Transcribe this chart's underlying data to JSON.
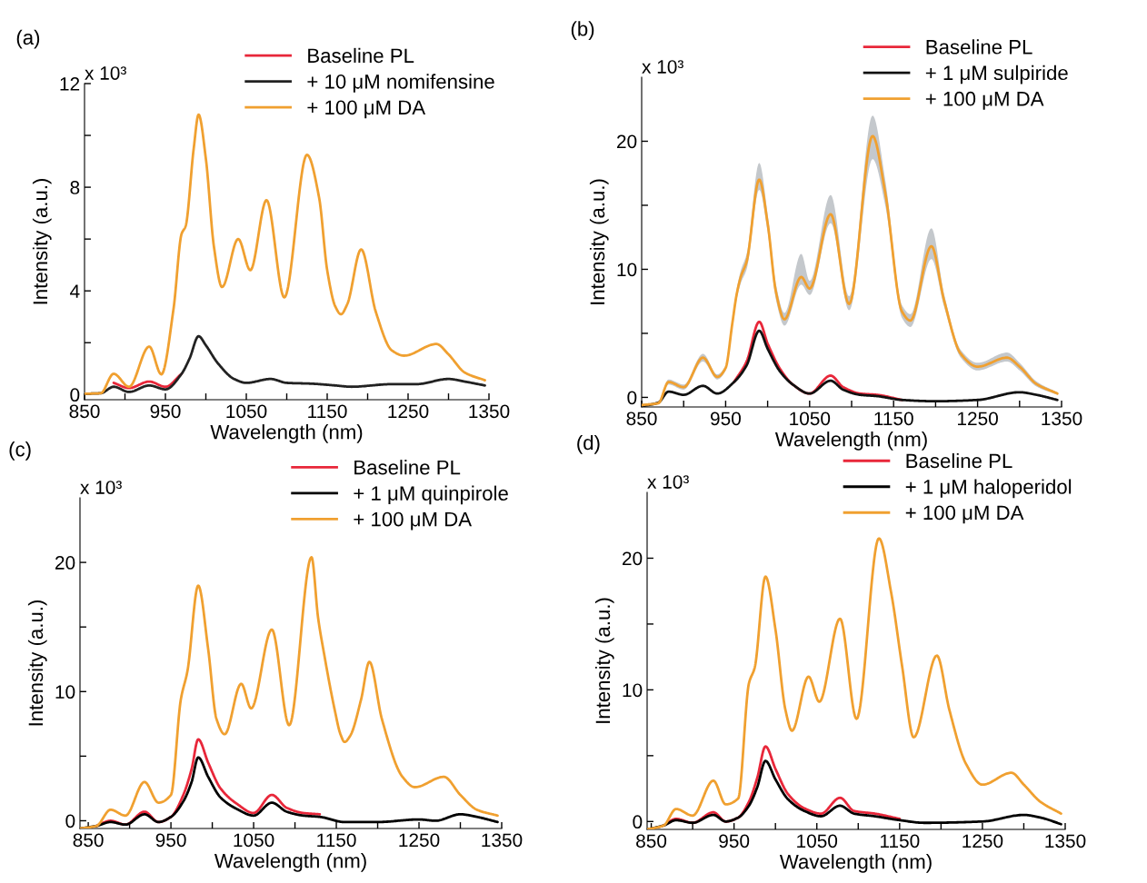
{
  "chart_data": [
    {
      "type": "line",
      "title": "(a)",
      "annotations": [
        "x 10³"
      ],
      "xlabel": "Wavelength (nm)",
      "ylabel": "Intensity (a.u.)",
      "xlim": [
        850,
        1350
      ],
      "xticks": [
        850,
        {
          "value": 900,
          "label": null
        },
        950,
        {
          "value": 1000,
          "label": null
        },
        1050,
        {
          "value": 1100,
          "label": null
        },
        1150,
        {
          "value": 1200,
          "label": null
        },
        1250,
        {
          "value": 1300,
          "label": null
        },
        1350
      ],
      "ylim": [
        -0.2,
        12
      ],
      "yticks": [
        0,
        {
          "value": 2,
          "label": null
        },
        4,
        {
          "value": 6,
          "label": null
        },
        8,
        {
          "value": 10,
          "label": null
        },
        12
      ],
      "legend": "top right",
      "series": [
        {
          "name": "Baseline PL",
          "color": "#e8273a",
          "x": [
            886,
            905,
            930,
            950,
            970
          ],
          "values": [
            0.45,
            0.25,
            0.5,
            0.3,
            0.8
          ]
        },
        {
          "name": "+ 10 μM nomifensine",
          "color": "#222222",
          "x": [
            850,
            870,
            886,
            905,
            930,
            950,
            970,
            980,
            991,
            1000,
            1015,
            1035,
            1050,
            1080,
            1100,
            1130,
            1160,
            1180,
            1230,
            1260,
            1300,
            1320,
            1345
          ],
          "values": [
            0.03,
            0.05,
            0.3,
            0.1,
            0.35,
            0.2,
            0.8,
            1.4,
            2.25,
            1.9,
            1.2,
            0.6,
            0.45,
            0.6,
            0.45,
            0.42,
            0.35,
            0.3,
            0.4,
            0.4,
            0.6,
            0.5,
            0.35
          ]
        },
        {
          "name": "+ 100 μM DA",
          "color": "#f0a030",
          "x": [
            850,
            870,
            886,
            905,
            930,
            945,
            960,
            970,
            975,
            985,
            991,
            1000,
            1010,
            1020,
            1040,
            1055,
            1075,
            1097,
            1125,
            1140,
            1150,
            1160,
            1167,
            1175,
            1192,
            1210,
            1230,
            1245,
            1285,
            1300,
            1320,
            1345
          ],
          "values": [
            0.03,
            0.05,
            0.8,
            0.3,
            1.85,
            0.78,
            3.3,
            6.2,
            6.5,
            9.5,
            10.8,
            9.1,
            5.7,
            4.15,
            6.0,
            4.8,
            7.5,
            3.75,
            9.25,
            7.6,
            4.8,
            3.4,
            3.1,
            3.5,
            5.6,
            3.2,
            1.7,
            1.5,
            1.95,
            1.55,
            0.85,
            0.55
          ]
        }
      ]
    },
    {
      "type": "line",
      "title": "(b)",
      "annotations": [
        "x 10³"
      ],
      "xlabel": "Wavelength (nm)",
      "ylabel": "Intensity (a.u.)",
      "xlim": [
        850,
        1350
      ],
      "xticks": [
        850,
        {
          "value": 900,
          "label": null
        },
        950,
        {
          "value": 1000,
          "label": null
        },
        1050,
        {
          "value": 1100,
          "label": null
        },
        1150,
        {
          "value": 1200,
          "label": null
        },
        1250,
        {
          "value": 1300,
          "label": null
        },
        1350
      ],
      "ylim": [
        -0.75,
        25
      ],
      "yticks": [
        0,
        {
          "value": 5,
          "label": null
        },
        10,
        {
          "value": 15,
          "label": null
        },
        20
      ],
      "legend": "top right",
      "series": [
        {
          "name": "Baseline PL",
          "color": "#e8273a",
          "x": [
            960,
            975,
            990,
            1000,
            1015,
            1030,
            1050,
            1075,
            1090,
            1110,
            1130,
            1160
          ],
          "values": [
            1.2,
            2.8,
            5.9,
            4.2,
            2.2,
            1.0,
            0.3,
            1.7,
            0.8,
            0.3,
            0.2,
            -0.2
          ]
        },
        {
          "name": "+ 1 μM sulpiride",
          "color": "#111111",
          "x": [
            850,
            870,
            882,
            900,
            923,
            940,
            960,
            975,
            990,
            1000,
            1015,
            1030,
            1050,
            1075,
            1090,
            1110,
            1130,
            1160,
            1200,
            1250,
            1300,
            1320,
            1345
          ],
          "values": [
            -0.7,
            -0.4,
            0.45,
            0.2,
            0.9,
            0.3,
            1.2,
            2.5,
            5.2,
            3.8,
            2.0,
            1.0,
            0.3,
            1.3,
            0.6,
            0.2,
            0.1,
            -0.2,
            -0.3,
            -0.2,
            0.4,
            0.2,
            -0.2
          ]
        },
        {
          "name": "+ 100 μM DA",
          "color": "#f0a030",
          "x": [
            850,
            870,
            882,
            900,
            923,
            940,
            950,
            958,
            963,
            968,
            975,
            990,
            1000,
            1010,
            1020,
            1040,
            1050,
            1075,
            1097,
            1125,
            1140,
            1160,
            1170,
            1195,
            1210,
            1230,
            1250,
            1285,
            1300,
            1320,
            1345
          ],
          "values": [
            -0.6,
            -0.45,
            1.2,
            0.8,
            3.1,
            1.6,
            2.3,
            5.8,
            8.0,
            9.4,
            10.6,
            17.0,
            13.6,
            8.2,
            6.1,
            9.4,
            8.5,
            14.3,
            7.3,
            20.4,
            16.0,
            6.7,
            6.0,
            11.8,
            7.6,
            3.4,
            2.4,
            3.1,
            2.4,
            1.05,
            0.3
          ],
          "lower": [
            -0.7,
            -0.55,
            1.0,
            0.6,
            2.8,
            1.4,
            2.1,
            5.5,
            7.6,
            8.9,
            10.0,
            16.2,
            12.9,
            7.6,
            5.6,
            8.8,
            8.0,
            13.6,
            6.8,
            18.6,
            15.0,
            6.2,
            5.5,
            10.8,
            7.1,
            3.1,
            2.1,
            2.8,
            2.1,
            0.85,
            0.2
          ],
          "upper": [
            -0.5,
            -0.35,
            1.4,
            1.0,
            3.4,
            1.8,
            2.5,
            6.1,
            8.4,
            9.9,
            11.2,
            18.3,
            14.3,
            8.8,
            6.6,
            11.2,
            9.1,
            15.8,
            7.9,
            22.0,
            17.0,
            7.2,
            6.5,
            13.2,
            8.1,
            3.7,
            2.7,
            3.5,
            2.7,
            1.25,
            0.4
          ]
        }
      ]
    },
    {
      "type": "line",
      "title": "(c)",
      "annotations": [
        "x 10³"
      ],
      "xlabel": "Wavelength (nm)",
      "ylabel": "Intensity (a.u.)",
      "xlim": [
        840,
        1350
      ],
      "xticks": [
        850,
        {
          "value": 900,
          "label": null
        },
        950,
        {
          "value": 1000,
          "label": null
        },
        1050,
        {
          "value": 1100,
          "label": null
        },
        1150,
        {
          "value": 1200,
          "label": null
        },
        1250,
        {
          "value": 1300,
          "label": null
        },
        1350
      ],
      "ylim": [
        -0.6,
        25
      ],
      "yticks": [
        0,
        {
          "value": 5,
          "label": null
        },
        10,
        {
          "value": 15,
          "label": null
        },
        20
      ],
      "legend": "top right",
      "series": [
        {
          "name": "Baseline PL",
          "color": "#e8273a",
          "x": [
            860,
            877,
            895,
            918,
            935,
            950,
            965,
            975,
            983,
            995,
            1010,
            1030,
            1050,
            1072,
            1090,
            1110,
            1130
          ],
          "values": [
            -0.4,
            0,
            -0.3,
            0.7,
            -0.1,
            0.3,
            2.0,
            4.0,
            6.3,
            4.5,
            2.5,
            1.3,
            0.6,
            2.0,
            1.0,
            0.6,
            0.5
          ]
        },
        {
          "name": "+ 1 μM quinpirole",
          "color": "#000000",
          "x": [
            840,
            860,
            877,
            895,
            918,
            935,
            950,
            965,
            975,
            983,
            995,
            1010,
            1030,
            1050,
            1072,
            1090,
            1110,
            1130,
            1160,
            1200,
            1250,
            1270,
            1300,
            1320,
            1345
          ],
          "values": [
            -0.6,
            -0.4,
            -0.1,
            -0.3,
            0.5,
            -0.1,
            0.3,
            1.5,
            3.0,
            4.9,
            3.4,
            1.8,
            0.9,
            0.4,
            1.4,
            0.7,
            0.4,
            0.3,
            -0.1,
            -0.1,
            0.1,
            0.0,
            0.5,
            0.3,
            -0.1
          ]
        },
        {
          "name": "+ 100 μM DA",
          "color": "#f0a030",
          "x": [
            840,
            860,
            877,
            895,
            918,
            935,
            950,
            962,
            970,
            983,
            995,
            1005,
            1015,
            1035,
            1047,
            1072,
            1093,
            1120,
            1128,
            1135,
            1148,
            1155,
            1160,
            1167,
            1180,
            1190,
            1205,
            1230,
            1245,
            1280,
            1300,
            1320,
            1345
          ],
          "values": [
            -0.6,
            -0.4,
            0.85,
            0.4,
            3.0,
            1.4,
            2.0,
            9.4,
            11.6,
            18.2,
            13.3,
            7.9,
            6.7,
            10.6,
            8.7,
            14.8,
            7.4,
            20.4,
            15.7,
            13.0,
            8.6,
            6.7,
            6.1,
            6.6,
            9.4,
            12.3,
            7.9,
            3.4,
            2.6,
            3.4,
            2.0,
            0.85,
            0.4
          ]
        }
      ]
    },
    {
      "type": "line",
      "title": "(d)",
      "annotations": [
        "x 10³"
      ],
      "xlabel": "Wavelength (nm)",
      "ylabel": "Intensity (a.u.)",
      "xlim": [
        845,
        1350
      ],
      "xticks": [
        850,
        {
          "value": 900,
          "label": null
        },
        950,
        {
          "value": 1000,
          "label": null
        },
        1050,
        {
          "value": 1100,
          "label": null
        },
        1150,
        {
          "value": 1200,
          "label": null
        },
        1250,
        {
          "value": 1300,
          "label": null
        },
        1350
      ],
      "ylim": [
        -0.6,
        25
      ],
      "yticks": [
        0,
        {
          "value": 5,
          "label": null
        },
        10,
        {
          "value": 15,
          "label": null
        },
        20
      ],
      "legend": "top right",
      "series": [
        {
          "name": "Baseline PL",
          "color": "#e8273a",
          "x": [
            865,
            880,
            900,
            925,
            940,
            955,
            968,
            978,
            988,
            1000,
            1015,
            1035,
            1055,
            1078,
            1095,
            1120,
            1150
          ],
          "values": [
            -0.3,
            0.2,
            -0.1,
            0.7,
            0.0,
            0.3,
            1.5,
            3.3,
            5.7,
            4.0,
            2.1,
            1.0,
            0.6,
            1.8,
            0.8,
            0.6,
            0.2
          ]
        },
        {
          "name": "+ 1 μM haloperidol",
          "color": "#000000",
          "x": [
            845,
            865,
            880,
            900,
            925,
            940,
            955,
            968,
            978,
            988,
            1000,
            1015,
            1035,
            1055,
            1078,
            1095,
            1120,
            1150,
            1180,
            1250,
            1300,
            1320,
            1345
          ],
          "values": [
            -0.6,
            -0.3,
            0.1,
            -0.1,
            0.5,
            0.0,
            0.3,
            1.2,
            2.6,
            4.6,
            3.2,
            1.7,
            0.8,
            0.4,
            1.2,
            0.6,
            0.4,
            0.1,
            -0.1,
            0.0,
            0.5,
            0.3,
            -0.2
          ]
        },
        {
          "name": "+ 100 μM DA",
          "color": "#f0a030",
          "x": [
            845,
            865,
            880,
            900,
            925,
            940,
            955,
            968,
            975,
            988,
            1000,
            1012,
            1020,
            1040,
            1053,
            1078,
            1098,
            1125,
            1140,
            1153,
            1167,
            1195,
            1210,
            1230,
            1250,
            1285,
            1300,
            1320,
            1345
          ],
          "values": [
            -0.6,
            -0.3,
            0.95,
            0.45,
            3.1,
            1.3,
            1.75,
            10.5,
            11.7,
            18.6,
            14.6,
            8.5,
            6.9,
            11.0,
            9.1,
            15.4,
            7.8,
            21.5,
            17.3,
            11.8,
            6.4,
            12.6,
            8.5,
            4.4,
            2.8,
            3.7,
            2.8,
            1.5,
            0.6
          ]
        }
      ]
    }
  ]
}
